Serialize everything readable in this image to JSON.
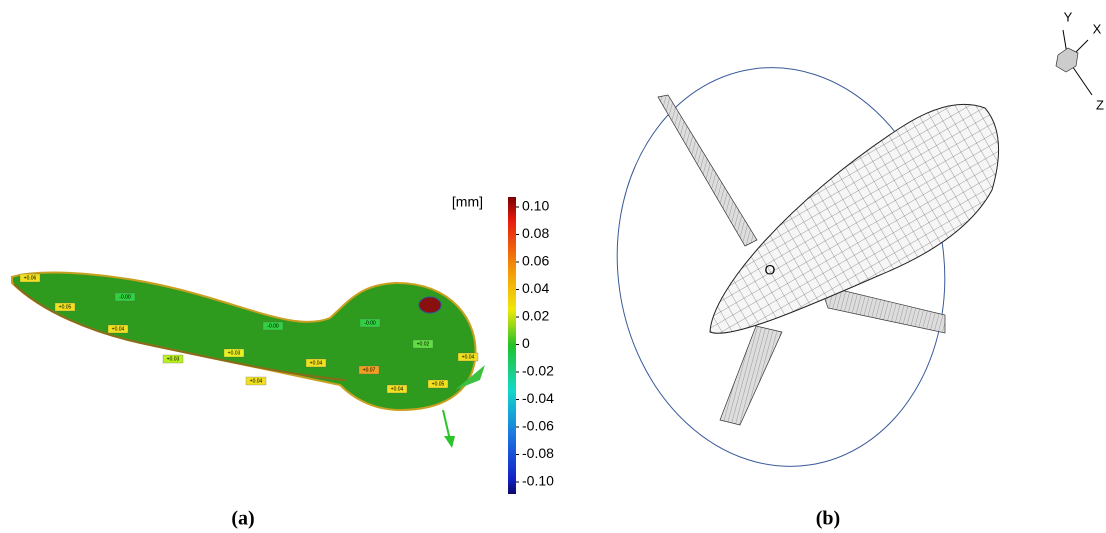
{
  "panel_a": {
    "unit": "[mm]",
    "colorbar_ticks": [
      "0.10",
      "0.08",
      "0.06",
      "0.04",
      "0.02",
      "0",
      "-0.02",
      "-0.04",
      "-0.06",
      "-0.08",
      "-0.10"
    ],
    "callouts": [
      "+0.06",
      "+0.05",
      "-0.00",
      "+0.04",
      "-0.00",
      "+0.03",
      "+0.03",
      "+0.04",
      "+0.04",
      "+0.07",
      "-0.00",
      "+0.02",
      "+0.04",
      "+0.05",
      "+0.04"
    ]
  },
  "panel_b": {
    "axes": {
      "y": "Y",
      "x": "X",
      "z": "Z"
    },
    "origin": "O"
  },
  "captions": [
    "(a)",
    "(b)"
  ]
}
